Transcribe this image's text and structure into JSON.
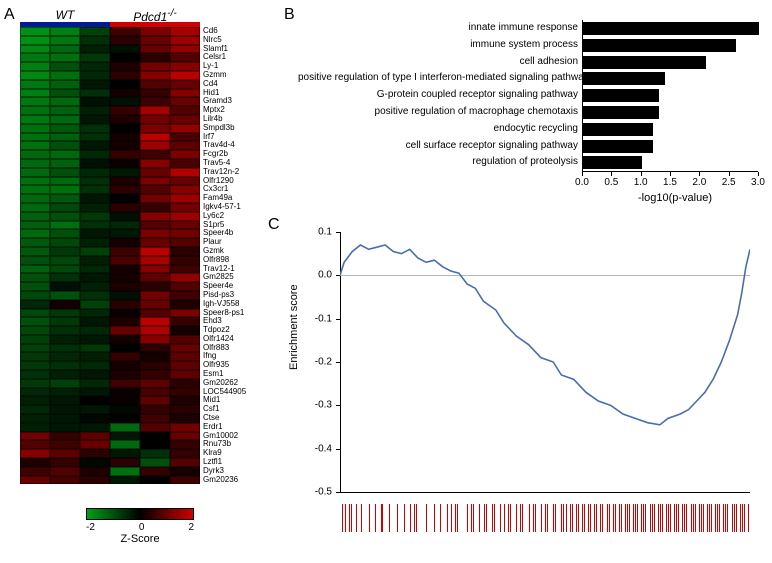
{
  "panels": {
    "A": "A",
    "B": "B",
    "C": "C"
  },
  "heatmap": {
    "header": {
      "left": "WT",
      "right": "Pdcd1",
      "right_sup": "-/-"
    },
    "colbar_colors": [
      "#001b98",
      "#d00000"
    ],
    "n_cols": 6,
    "gene_labels": [
      "Cd6",
      "Nlrc5",
      "Slamf1",
      "Celsr1",
      "Ly-1",
      "Gzmm",
      "Cd4",
      "Hid1",
      "Gramd3",
      "Mptx2",
      "Lilr4b",
      "Smpdl3b",
      "Irf7",
      "Trav4d-4",
      "Fcgr2b",
      "Trav5-4",
      "Trav12n-2",
      "Olfr1290",
      "Cx3cr1",
      "Fam49a",
      "Igkv4-57-1",
      "Ly6c2",
      "S1pr5",
      "Speer4b",
      "Plaur",
      "Gzmk",
      "Olfr898",
      "Trav12-1",
      "Gm2825",
      "Speer4e",
      "Pisd-ps3",
      "Igh-VJ558",
      "Speer8-ps1",
      "Ehd3",
      "Tdpoz2",
      "Olfr1424",
      "Olfr883",
      "Ifng",
      "Olfr935",
      "Esm1",
      "Gm20262",
      "LOC544905",
      "Mid1",
      "Csf1",
      "Ctse",
      "Erdr1",
      "Gm10002",
      "Rnu73b",
      "Klra9",
      "Lztfl1",
      "Dyrk3",
      "Gm20236"
    ],
    "z": [
      [
        -1.8,
        -1.6,
        -0.8,
        0.6,
        1.2,
        1.6
      ],
      [
        -1.8,
        -1.5,
        -0.6,
        0.4,
        1.0,
        1.5
      ],
      [
        -1.7,
        -1.3,
        -0.4,
        -0.2,
        1.0,
        1.4
      ],
      [
        -1.5,
        -1.4,
        -0.7,
        0.0,
        0.4,
        0.8
      ],
      [
        -1.6,
        -1.0,
        -0.5,
        0.3,
        1.1,
        1.3
      ],
      [
        -1.7,
        -1.4,
        -0.5,
        0.4,
        1.3,
        1.8
      ],
      [
        -1.5,
        -1.2,
        -0.3,
        0.0,
        0.8,
        1.0
      ],
      [
        -1.6,
        -1.0,
        -0.6,
        0.2,
        0.5,
        1.3
      ],
      [
        -1.5,
        -1.3,
        -0.2,
        -0.2,
        0.6,
        1.0
      ],
      [
        -1.4,
        -1.2,
        -0.4,
        0.5,
        1.6,
        0.8
      ],
      [
        -1.5,
        -1.3,
        -0.3,
        0.3,
        1.1,
        1.0
      ],
      [
        -1.4,
        -1.1,
        -0.6,
        0.0,
        1.2,
        1.4
      ],
      [
        -1.4,
        -1.2,
        -0.6,
        0.2,
        1.8,
        0.7
      ],
      [
        -1.4,
        -1.0,
        -0.3,
        0.2,
        1.5,
        0.9
      ],
      [
        -1.3,
        -1.3,
        -0.5,
        0.5,
        0.6,
        1.2
      ],
      [
        -1.3,
        -1.2,
        -0.2,
        0.1,
        1.3,
        0.7
      ],
      [
        -1.3,
        -1.0,
        -0.5,
        -0.3,
        1.0,
        1.7
      ],
      [
        -1.4,
        -1.3,
        -0.6,
        0.3,
        1.2,
        1.0
      ],
      [
        -1.4,
        -1.4,
        -0.6,
        0.4,
        0.8,
        1.3
      ],
      [
        -1.3,
        -1.1,
        -0.3,
        0.0,
        1.1,
        1.5
      ],
      [
        -1.3,
        -0.9,
        -0.4,
        0.4,
        0.5,
        1.1
      ],
      [
        -1.2,
        -1.0,
        -0.7,
        -0.2,
        1.3,
        1.5
      ],
      [
        -1.2,
        -1.4,
        -0.6,
        -0.5,
        0.8,
        1.0
      ],
      [
        -1.3,
        -1.0,
        -0.3,
        -0.3,
        1.2,
        1.1
      ],
      [
        -1.1,
        -0.9,
        -0.4,
        0.2,
        1.0,
        0.8
      ],
      [
        -1.1,
        -0.7,
        -0.8,
        0.6,
        1.8,
        0.4
      ],
      [
        -1.0,
        -0.9,
        -0.4,
        0.7,
        1.6,
        0.5
      ],
      [
        -1.2,
        -0.9,
        -0.5,
        0.2,
        1.3,
        0.6
      ],
      [
        -1.0,
        -0.6,
        -0.3,
        0.2,
        0.9,
        1.4
      ],
      [
        -1.0,
        -0.2,
        -0.4,
        0.3,
        0.4,
        0.8
      ],
      [
        -0.9,
        -1.0,
        -0.6,
        -0.2,
        1.1,
        0.6
      ],
      [
        -0.5,
        0.2,
        -0.8,
        0.4,
        1.0,
        0.3
      ],
      [
        -0.9,
        -0.7,
        -0.5,
        0.1,
        0.8,
        1.2
      ],
      [
        -1.0,
        -0.7,
        -0.3,
        0.3,
        1.8,
        0.5
      ],
      [
        -0.9,
        -0.6,
        -0.5,
        1.0,
        1.7,
        0.2
      ],
      [
        -0.8,
        -0.4,
        -0.3,
        0.2,
        1.3,
        0.8
      ],
      [
        -0.8,
        -0.6,
        -0.7,
        0.0,
        0.4,
        1.0
      ],
      [
        -0.7,
        -0.5,
        -0.4,
        0.5,
        0.2,
        0.9
      ],
      [
        -0.7,
        -0.6,
        -0.5,
        0.2,
        0.4,
        0.9
      ],
      [
        -0.6,
        -0.4,
        -0.3,
        0.3,
        0.5,
        0.9
      ],
      [
        -0.7,
        -0.8,
        -0.5,
        0.6,
        0.9,
        0.4
      ],
      [
        -0.5,
        -0.4,
        -0.3,
        0.1,
        0.7,
        0.5
      ],
      [
        -0.4,
        -0.3,
        0.0,
        0.1,
        0.9,
        0.3
      ],
      [
        -0.5,
        -0.3,
        -0.3,
        -0.1,
        0.5,
        0.4
      ],
      [
        -0.4,
        -0.3,
        -0.1,
        0.0,
        0.6,
        0.3
      ],
      [
        -0.4,
        -0.3,
        -0.3,
        -1.3,
        0.8,
        1.1
      ],
      [
        1.1,
        0.5,
        0.9,
        -0.3,
        0.0,
        1.0
      ],
      [
        0.8,
        0.6,
        1.0,
        -1.3,
        0.0,
        0.5
      ],
      [
        1.3,
        0.9,
        0.4,
        -0.3,
        -0.6,
        0.5
      ],
      [
        0.3,
        0.5,
        -0.1,
        0.4,
        -1.0,
        0.8
      ],
      [
        0.6,
        0.8,
        0.3,
        -1.4,
        0.5,
        0.2
      ],
      [
        1.0,
        0.7,
        0.4,
        -0.3,
        0.0,
        0.6
      ]
    ],
    "color_low": "#00a016",
    "color_mid": "#000000",
    "color_high": "#d00000",
    "zlim": [
      -2,
      2
    ],
    "colorbar": {
      "ticks": [
        -2,
        0,
        2
      ],
      "title": "Z-Score"
    }
  },
  "barchart": {
    "labels": [
      "innate immune response",
      "immune system process",
      "cell adhesion",
      "positive regulation of type I interferon-mediated signaling pathway",
      "G-protein coupled receptor signaling pathway",
      "positive regulation of macrophage chemotaxis",
      "endocytic recycling",
      "cell surface receptor signaling pathway",
      "regulation of proteolysis"
    ],
    "values": [
      3.0,
      2.6,
      2.1,
      1.4,
      1.3,
      1.3,
      1.2,
      1.2,
      1.0
    ],
    "bar_color": "#000000",
    "xlim": [
      0,
      3.0
    ],
    "xticks": [
      0.0,
      0.5,
      1.0,
      1.5,
      2.0,
      2.5,
      3.0
    ],
    "xlabel": "-log10(p-value)"
  },
  "gsea": {
    "ylim": [
      -0.5,
      0.1
    ],
    "yticks": [
      -0.5,
      -0.4,
      -0.3,
      -0.2,
      -0.1,
      0.0,
      0.1
    ],
    "ylabel": "Enrichment score",
    "zero_line_color": "#b5b5b5",
    "curve_color": "#4a6db0",
    "curve": [
      [
        0,
        0
      ],
      [
        0.01,
        0.03
      ],
      [
        0.03,
        0.055
      ],
      [
        0.05,
        0.07
      ],
      [
        0.07,
        0.06
      ],
      [
        0.09,
        0.065
      ],
      [
        0.11,
        0.07
      ],
      [
        0.13,
        0.055
      ],
      [
        0.15,
        0.05
      ],
      [
        0.17,
        0.06
      ],
      [
        0.19,
        0.04
      ],
      [
        0.21,
        0.03
      ],
      [
        0.23,
        0.035
      ],
      [
        0.25,
        0.02
      ],
      [
        0.27,
        0.01
      ],
      [
        0.29,
        0.005
      ],
      [
        0.31,
        -0.02
      ],
      [
        0.33,
        -0.03
      ],
      [
        0.35,
        -0.06
      ],
      [
        0.38,
        -0.08
      ],
      [
        0.4,
        -0.11
      ],
      [
        0.43,
        -0.14
      ],
      [
        0.46,
        -0.16
      ],
      [
        0.49,
        -0.19
      ],
      [
        0.52,
        -0.2
      ],
      [
        0.54,
        -0.23
      ],
      [
        0.57,
        -0.24
      ],
      [
        0.6,
        -0.27
      ],
      [
        0.63,
        -0.29
      ],
      [
        0.66,
        -0.3
      ],
      [
        0.69,
        -0.32
      ],
      [
        0.72,
        -0.33
      ],
      [
        0.75,
        -0.34
      ],
      [
        0.78,
        -0.345
      ],
      [
        0.8,
        -0.33
      ],
      [
        0.83,
        -0.32
      ],
      [
        0.85,
        -0.31
      ],
      [
        0.87,
        -0.29
      ],
      [
        0.89,
        -0.27
      ],
      [
        0.91,
        -0.24
      ],
      [
        0.93,
        -0.2
      ],
      [
        0.95,
        -0.15
      ],
      [
        0.97,
        -0.09
      ],
      [
        0.98,
        -0.04
      ],
      [
        0.99,
        0.02
      ],
      [
        1.0,
        0.06
      ]
    ],
    "rug_color": "#d00000",
    "rug": [
      0.005,
      0.012,
      0.022,
      0.028,
      0.04,
      0.05,
      0.07,
      0.085,
      0.1,
      0.103,
      0.12,
      0.14,
      0.155,
      0.17,
      0.18,
      0.185,
      0.21,
      0.23,
      0.245,
      0.26,
      0.27,
      0.28,
      0.285,
      0.31,
      0.32,
      0.325,
      0.34,
      0.35,
      0.355,
      0.37,
      0.375,
      0.39,
      0.4,
      0.41,
      0.415,
      0.43,
      0.44,
      0.445,
      0.46,
      0.47,
      0.475,
      0.49,
      0.5,
      0.505,
      0.52,
      0.525,
      0.54,
      0.545,
      0.55,
      0.56,
      0.565,
      0.575,
      0.58,
      0.59,
      0.595,
      0.605,
      0.61,
      0.62,
      0.625,
      0.635,
      0.64,
      0.65,
      0.655,
      0.665,
      0.67,
      0.68,
      0.685,
      0.695,
      0.7,
      0.705,
      0.715,
      0.72,
      0.725,
      0.735,
      0.74,
      0.745,
      0.755,
      0.76,
      0.765,
      0.775,
      0.78,
      0.785,
      0.795,
      0.8,
      0.805,
      0.815,
      0.82,
      0.825,
      0.835,
      0.84,
      0.845,
      0.855,
      0.86,
      0.865,
      0.875,
      0.88,
      0.885,
      0.895,
      0.9,
      0.905,
      0.915,
      0.92,
      0.925,
      0.935,
      0.94,
      0.945,
      0.955,
      0.96,
      0.965,
      0.975,
      0.98,
      0.985,
      0.995
    ]
  }
}
